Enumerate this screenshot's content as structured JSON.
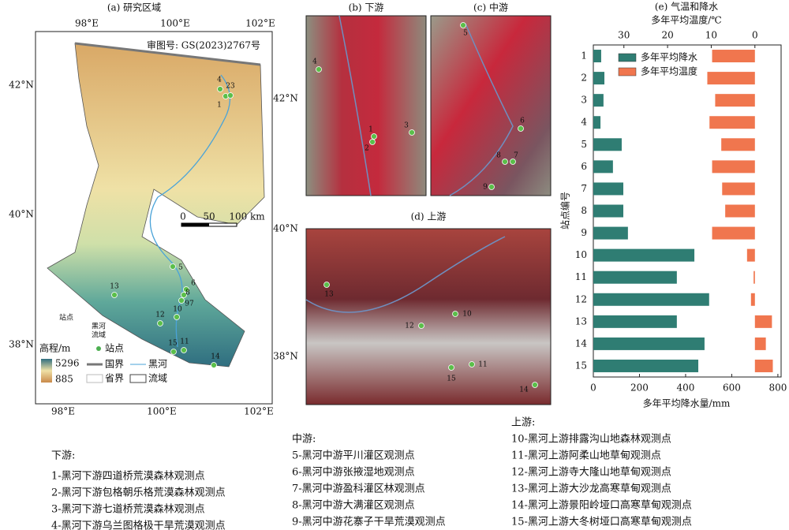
{
  "map": {
    "title": "(a) 研究区域",
    "approval": "审图号: GS(2023)2767号",
    "lon_labels": [
      "98°E",
      "100°E",
      "102°E"
    ],
    "lat_labels": [
      "42°N",
      "40°N",
      "38°N"
    ],
    "scale_labels": [
      "0",
      "50",
      "100 km"
    ],
    "stations": [
      "1",
      "23",
      "4",
      "5",
      "6",
      "8",
      "97",
      "10",
      "11",
      "12",
      "13",
      "14",
      "15"
    ],
    "legend": {
      "elevation_title": "高程/m",
      "elev_max": "5296",
      "elev_min": "885",
      "station": "站点",
      "national_border": "国界",
      "river": "黑河",
      "province": "省界",
      "basin": "流域"
    },
    "inset_label": "站点",
    "basin_label": [
      "黑河",
      "流域"
    ]
  },
  "panels": [
    {
      "title": "(b) 下游",
      "stations": [
        "4",
        "1",
        "2",
        "3"
      ]
    },
    {
      "title": "(c) 中游",
      "stations": [
        "5",
        "6",
        "8",
        "7",
        "9"
      ]
    },
    {
      "title": "(d) 上游",
      "stations": [
        "13",
        "10",
        "12",
        "11",
        "15",
        "14"
      ]
    }
  ],
  "chart_data": {
    "type": "mirror-bar",
    "title": "(e) 气温和降水",
    "x_label": "多年平均降水量/mm",
    "x2_label": "多年平均温度/℃",
    "y_label": "站点编号",
    "categories": [
      "1",
      "2",
      "3",
      "4",
      "5",
      "6",
      "7",
      "8",
      "9",
      "10",
      "11",
      "12",
      "13",
      "14",
      "15"
    ],
    "series": [
      {
        "name": "多年平均降水",
        "color": "#2f7d73",
        "values": [
          34,
          48,
          44,
          31,
          123,
          85,
          130,
          130,
          150,
          438,
          362,
          502,
          362,
          482,
          455
        ]
      },
      {
        "name": "多年平均温度",
        "color": "#f0764e",
        "axis": "x2",
        "values": [
          9.8,
          10.9,
          9.1,
          10.4,
          7.7,
          9.8,
          7.5,
          6.8,
          9.8,
          1.8,
          0.3,
          0.9,
          -3.9,
          -2.5,
          -4.1
        ]
      }
    ],
    "xlim": [
      0,
      814
    ],
    "xticks": [
      0,
      200,
      400,
      600,
      800
    ],
    "x2lim": [
      37,
      -6
    ],
    "x2ticks": [
      30,
      20,
      10,
      0
    ]
  },
  "station_list": [
    {
      "heading": "下游:",
      "items": [
        "1-黑河下游四道桥荒漠森林观测点",
        "2-黑河下游包格朝乐格荒漠森林观测点",
        "3-黑河下游七道桥荒漠森林观测点",
        "4-黑河下游乌兰图格极干旱荒漠观测点"
      ]
    },
    {
      "heading": "中游:",
      "items": [
        "5-黑河中游平川灌区观测点",
        "6-黑河中游张掖湿地观测点",
        "7-黑河中游盈科灌区林观测点",
        "8-黑河中游大满灌区观测点",
        "9-黑河中游花寨子干旱荒漠观测点"
      ]
    },
    {
      "heading": "上游:",
      "items": [
        "10-黑河上游排露沟山地森林观测点",
        "11-黑河上游阿柔山地草甸观测点",
        "12-黑河上游寺大隆山地草甸观测点",
        "13-黑河上游大沙龙高寒草甸观测点",
        "14-黑河上游景阳岭垭口高寒草甸观测点",
        "15-黑河上游大冬树垭口高寒草甸观测点"
      ]
    }
  ]
}
